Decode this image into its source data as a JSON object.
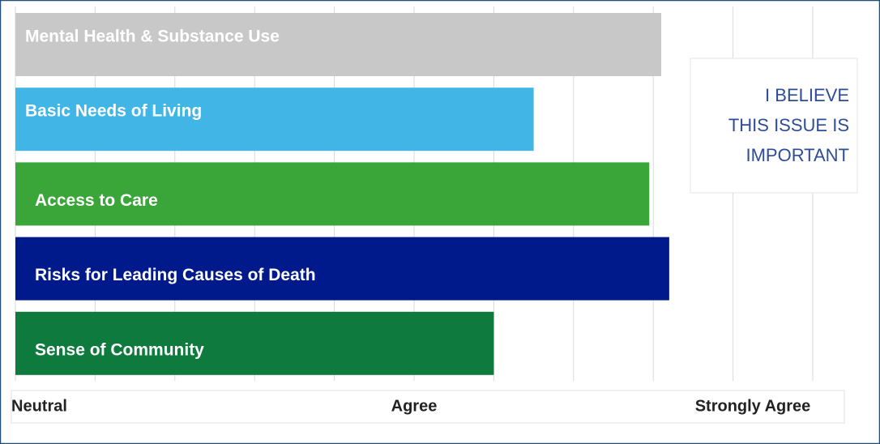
{
  "chart_data": {
    "type": "barh",
    "categories": [
      "Mental Health & Substance Use",
      "Basic Needs of Living",
      "Access to Care",
      "Risks for Leading Causes of Death",
      "Sense of Community"
    ],
    "values": [
      4.62,
      4.3,
      4.59,
      4.64,
      4.2
    ],
    "colors": [
      "#c8c8c8",
      "#41b6e6",
      "#3aa63a",
      "#001a8c",
      "#0e7a3e"
    ],
    "xlim": [
      3,
      5
    ],
    "xticks": [
      {
        "value": 3,
        "label": "Neutral"
      },
      {
        "value": 4,
        "label": "Agree"
      },
      {
        "value": 5,
        "label": "Strongly Agree"
      }
    ],
    "minor_xticks": [
      3.2,
      3.4,
      3.6,
      3.8,
      4.2,
      4.4,
      4.6,
      4.8
    ],
    "grid": true,
    "annotation": [
      "I BELIEVE",
      "THIS ISSUE IS",
      "IMPORTANT"
    ]
  }
}
